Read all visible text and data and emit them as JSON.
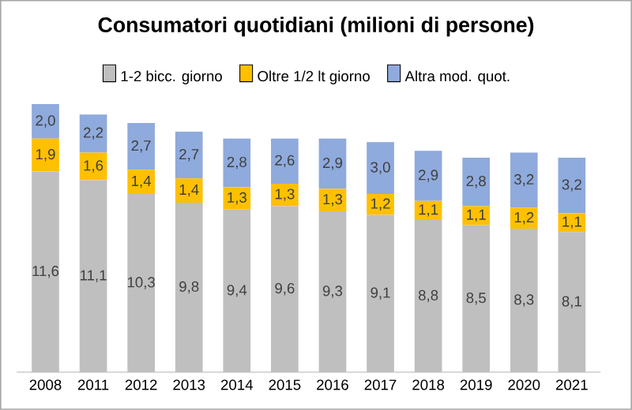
{
  "chart_data": {
    "type": "bar",
    "title": "Consumatori quotidiani (milioni di persone)",
    "stacked": true,
    "legend": "top",
    "categories": [
      "2008",
      "2011",
      "2012",
      "2013",
      "2014",
      "2015",
      "2016",
      "2017",
      "2018",
      "2019",
      "2020",
      "2021"
    ],
    "series": [
      {
        "name": "1-2 bicc. giorno",
        "color": "#bfbfbf",
        "values": [
          11.6,
          11.1,
          10.3,
          9.8,
          9.4,
          9.6,
          9.3,
          9.1,
          8.8,
          8.5,
          8.3,
          8.1
        ],
        "value_labels": [
          "11,6",
          "11,1",
          "10,3",
          "9,8",
          "9,4",
          "9,6",
          "9,3",
          "9,1",
          "8,8",
          "8,5",
          "8,3",
          "8,1"
        ]
      },
      {
        "name": "Oltre 1/2 lt giorno",
        "color": "#ffc000",
        "values": [
          1.9,
          1.6,
          1.4,
          1.4,
          1.3,
          1.3,
          1.3,
          1.2,
          1.1,
          1.1,
          1.2,
          1.1
        ],
        "value_labels": [
          "1,9",
          "1,6",
          "1,4",
          "1,4",
          "1,3",
          "1,3",
          "1,3",
          "1,2",
          "1,1",
          "1,1",
          "1,2",
          "1,1"
        ]
      },
      {
        "name": "Altra mod. quot.",
        "color": "#8faadc",
        "values": [
          2.0,
          2.2,
          2.7,
          2.7,
          2.8,
          2.6,
          2.9,
          3.0,
          2.9,
          2.8,
          3.2,
          3.2
        ],
        "value_labels": [
          "2,0",
          "2,2",
          "2,7",
          "2,7",
          "2,8",
          "2,6",
          "2,9",
          "3,0",
          "2,9",
          "2,8",
          "3,2",
          "3,2"
        ]
      }
    ]
  }
}
